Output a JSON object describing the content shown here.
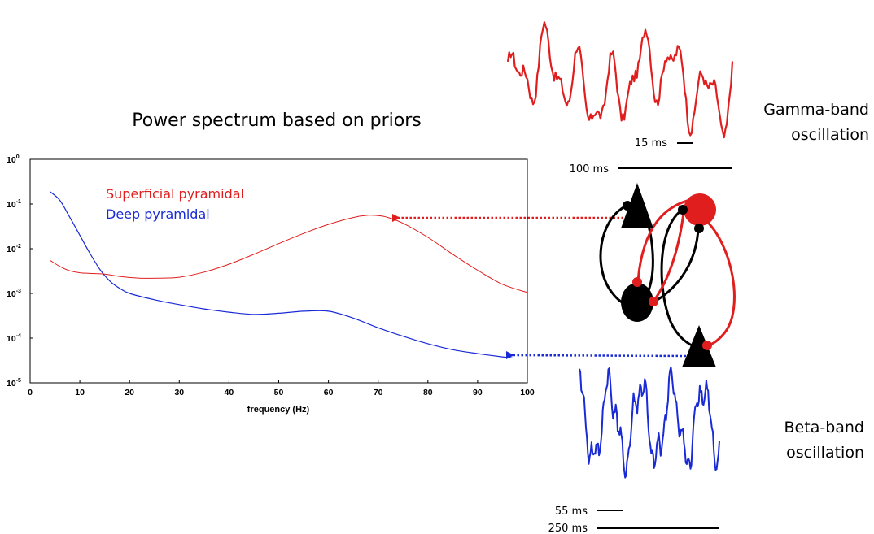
{
  "title": "Power spectrum based on priors",
  "colors": {
    "superficial": "#e01e1e",
    "deep": "#1a2bd6",
    "neuron_black": "#000000"
  },
  "chart_data": {
    "type": "line",
    "xlabel": "frequency (Hz)",
    "ylabel": "",
    "xlim": [
      0,
      100
    ],
    "ylim": [
      1e-05,
      1
    ],
    "yscale": "log",
    "grid": false,
    "legend_position": "top-left",
    "xticks": [
      "0",
      "10",
      "20",
      "30",
      "40",
      "50",
      "60",
      "70",
      "80",
      "90",
      "100"
    ],
    "yticks": [
      {
        "base": "10",
        "exp": "0"
      },
      {
        "base": "10",
        "exp": "-1"
      },
      {
        "base": "10",
        "exp": "-2"
      },
      {
        "base": "10",
        "exp": "-3"
      },
      {
        "base": "10",
        "exp": "-4"
      },
      {
        "base": "10",
        "exp": "-5"
      }
    ],
    "series": [
      {
        "name": "Superficial pyramidal",
        "x": [
          4,
          6,
          8,
          10,
          12,
          15,
          18,
          22,
          26,
          30,
          35,
          40,
          45,
          50,
          55,
          60,
          65,
          68,
          70,
          72,
          75,
          80,
          85,
          90,
          95,
          100
        ],
        "y": [
          0.0055,
          0.004,
          0.0032,
          0.0029,
          0.0028,
          0.0027,
          0.0024,
          0.0022,
          0.0022,
          0.0023,
          0.003,
          0.0045,
          0.0075,
          0.013,
          0.022,
          0.035,
          0.05,
          0.056,
          0.055,
          0.05,
          0.037,
          0.018,
          0.0075,
          0.0033,
          0.0016,
          0.00105
        ]
      },
      {
        "name": "Deep pyramidal",
        "x": [
          4,
          6,
          8,
          10,
          12,
          14,
          16,
          18,
          20,
          25,
          30,
          35,
          40,
          45,
          50,
          55,
          60,
          65,
          70,
          75,
          80,
          85,
          90,
          95,
          97
        ],
        "y": [
          0.19,
          0.12,
          0.05,
          0.02,
          0.008,
          0.0035,
          0.0019,
          0.0013,
          0.001,
          0.00072,
          0.00056,
          0.00045,
          0.00038,
          0.00034,
          0.00036,
          0.0004,
          0.0004,
          0.00028,
          0.00017,
          0.00011,
          7.5e-05,
          5.5e-05,
          4.5e-05,
          3.8e-05,
          3.6e-05
        ]
      }
    ]
  },
  "gamma": {
    "label_line1": "Gamma-band",
    "label_line2": "oscillation",
    "scale_short": "15 ms",
    "scale_long": "100 ms"
  },
  "beta": {
    "label_line1": "Beta-band",
    "label_line2": "oscillation",
    "scale_short": "55 ms",
    "scale_long": "250 ms"
  }
}
